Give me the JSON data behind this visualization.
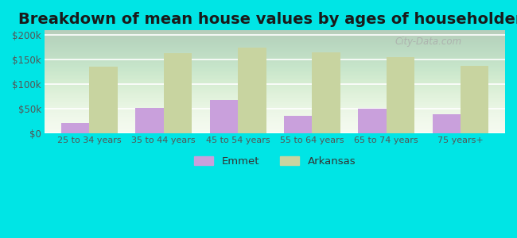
{
  "title": "Breakdown of mean house values by ages of householders",
  "categories": [
    "25 to 34 years",
    "35 to 44 years",
    "45 to 54 years",
    "55 to 64 years",
    "65 to 74 years",
    "75 years+"
  ],
  "emmet_values": [
    20000,
    52000,
    68000,
    35000,
    50000,
    38000
  ],
  "arkansas_values": [
    135000,
    163000,
    175000,
    165000,
    155000,
    138000
  ],
  "emmet_color": "#c9a0dc",
  "arkansas_color": "#c8d4a0",
  "background_color": "#00e5e5",
  "plot_bg_top": "#e8f5e0",
  "plot_bg_bottom": "#ffffff",
  "ylim": [
    0,
    210000
  ],
  "yticks": [
    0,
    50000,
    100000,
    150000,
    200000
  ],
  "ytick_labels": [
    "$0",
    "$50k",
    "$100k",
    "$150k",
    "$200k"
  ],
  "title_fontsize": 14,
  "legend_labels": [
    "Emmet",
    "Arkansas"
  ],
  "bar_width": 0.38
}
